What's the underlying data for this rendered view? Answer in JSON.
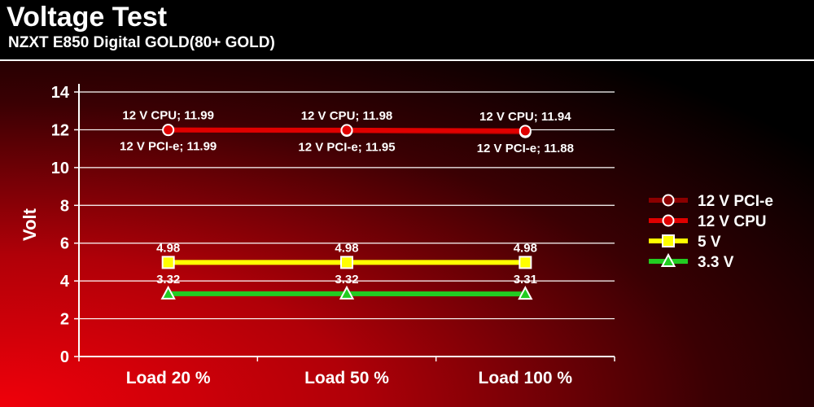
{
  "header": {
    "title": "Voltage Test",
    "subtitle": "NZXT E850 Digital GOLD(80+ GOLD)"
  },
  "colors": {
    "background_light": "#e8000a",
    "background_dark": "#000000",
    "12v_pcie": "#8b0000",
    "12v_cpu": "#e00000",
    "5v": "#ffff00",
    "3_3v": "#22cc22"
  },
  "chart_data": {
    "type": "line",
    "title": "Voltage Test",
    "subtitle": "NZXT E850 Digital GOLD(80+ GOLD)",
    "xlabel": "",
    "ylabel": "Volt",
    "categories": [
      "Load 20 %",
      "Load 50 %",
      "Load 100 %"
    ],
    "ylim": [
      0,
      14
    ],
    "yticks": [
      0,
      2,
      4,
      6,
      8,
      10,
      12,
      14
    ],
    "grid": true,
    "legend_position": "right",
    "series": [
      {
        "name": "12 V PCI-e",
        "values": [
          11.99,
          11.95,
          11.88
        ],
        "labels": [
          "12 V PCI-e; 11.99",
          "12 V PCI-e; 11.95",
          "12 V PCI-e; 11.88"
        ],
        "label_position": "below",
        "color": "#8b0000",
        "marker": "circle",
        "marker_fill": "#8b0000"
      },
      {
        "name": "12 V CPU",
        "values": [
          11.99,
          11.98,
          11.94
        ],
        "labels": [
          "12 V CPU; 11.99",
          "12 V CPU; 11.98",
          "12 V CPU; 11.94"
        ],
        "label_position": "above",
        "color": "#e00000",
        "marker": "circle",
        "marker_fill": "#e00000"
      },
      {
        "name": "5 V",
        "values": [
          4.98,
          4.98,
          4.98
        ],
        "labels": [
          "4.98",
          "4.98",
          "4.98"
        ],
        "label_position": "above",
        "color": "#ffff00",
        "marker": "square",
        "marker_fill": "#ffff00"
      },
      {
        "name": "3.3 V",
        "values": [
          3.32,
          3.32,
          3.31
        ],
        "labels": [
          "3.32",
          "3.32",
          "3.31"
        ],
        "label_position": "above",
        "color": "#22cc22",
        "marker": "triangle",
        "marker_fill": "#22cc22"
      }
    ]
  }
}
